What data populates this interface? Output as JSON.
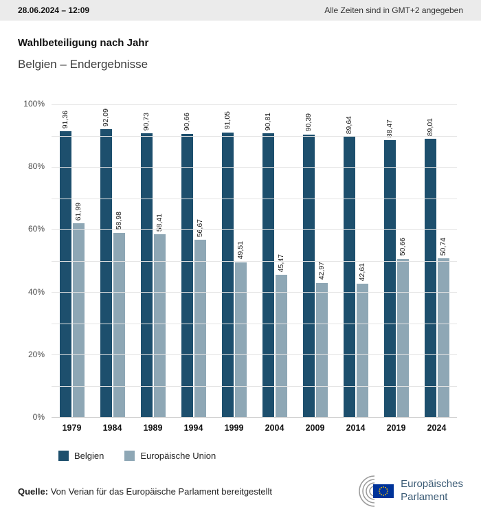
{
  "topbar": {
    "date": "28.06.2024 – 12:09",
    "timezone": "Alle Zeiten sind in GMT+2 angegeben"
  },
  "title": "Wahlbeteiligung nach Jahr",
  "subtitle": "Belgien – Endergebnisse",
  "chart_data": {
    "type": "bar",
    "title": "Wahlbeteiligung nach Jahr",
    "subtitle": "Belgien – Endergebnisse",
    "categories": [
      "1979",
      "1984",
      "1989",
      "1994",
      "1999",
      "2004",
      "2009",
      "2014",
      "2019",
      "2024"
    ],
    "series": [
      {
        "name": "Belgien",
        "color": "#1d4f6d",
        "values": [
          91.36,
          92.09,
          90.73,
          90.66,
          91.05,
          90.81,
          90.39,
          89.64,
          88.47,
          89.01
        ],
        "labels": [
          "91,36",
          "92,09",
          "90,73",
          "90,66",
          "91,05",
          "90,81",
          "90,39",
          "89,64",
          "88,47",
          "89,01"
        ]
      },
      {
        "name": "Europäische Union",
        "color": "#8ea7b5",
        "values": [
          61.99,
          58.98,
          58.41,
          56.67,
          49.51,
          45.47,
          42.97,
          42.61,
          50.66,
          50.74
        ],
        "labels": [
          "61,99",
          "58,98",
          "58,41",
          "56,67",
          "49,51",
          "45,47",
          "42,97",
          "42,61",
          "50,66",
          "50,74"
        ]
      }
    ],
    "xlabel": "",
    "ylabel": "",
    "ylim": [
      0,
      100
    ],
    "grid": true,
    "grid_step": 10,
    "y_tick_step": 20,
    "y_tick_labels": [
      "0%",
      "20%",
      "40%",
      "60%",
      "80%",
      "100%"
    ],
    "legend_position": "bottom"
  },
  "footer": {
    "source_label": "Quelle:",
    "source_text": "Von Verian für das Europäische Parlament bereitgestellt",
    "logo": {
      "line1": "Europäisches",
      "line2": "Parlament"
    }
  }
}
